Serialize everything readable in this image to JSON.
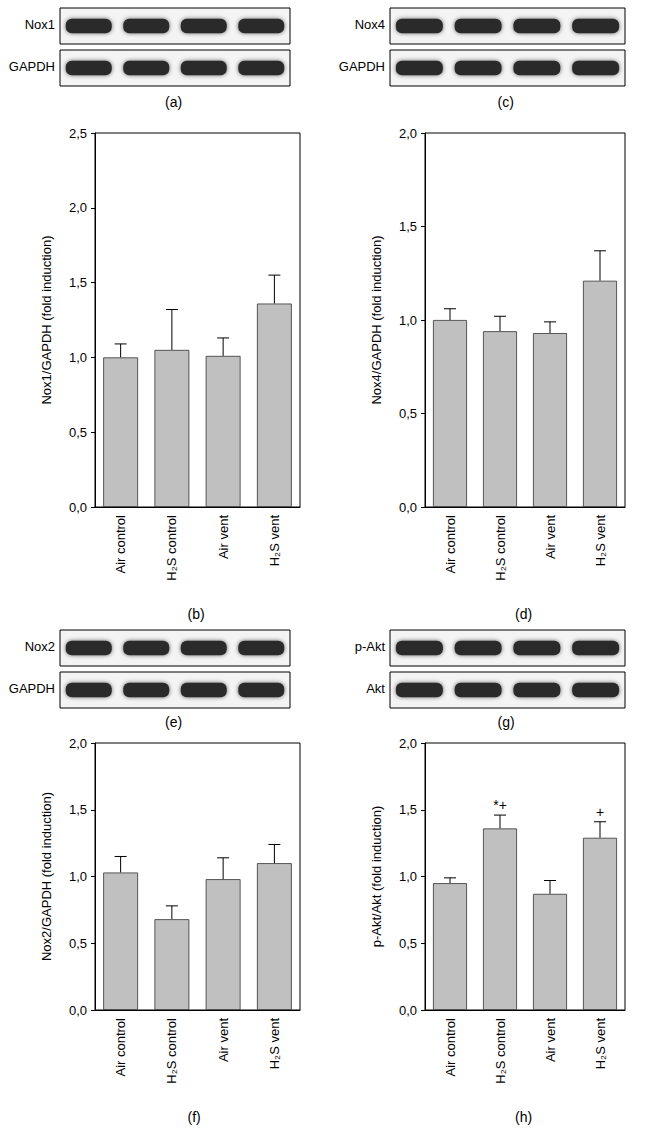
{
  "chart_data": [
    {
      "type": "bar",
      "panel": "(b)",
      "blot": {
        "panel": "(a)",
        "rows": [
          "Nox1",
          "GAPDH"
        ]
      },
      "y_label": "Nox1/GAPDH (fold induction)",
      "categories": [
        "Air control",
        "H₂S control",
        "Air vent",
        "H₂S vent"
      ],
      "values": [
        1.0,
        1.05,
        1.01,
        1.36
      ],
      "errors": [
        0.09,
        0.27,
        0.12,
        0.19
      ],
      "color": "#c0c0c0",
      "grid": false,
      "ylim": [
        0,
        2.5
      ],
      "yticks": [
        {
          "value": 0,
          "label": "0,0"
        },
        {
          "value": 0.5,
          "label": "0,5"
        },
        {
          "value": 1.0,
          "label": "1,0"
        },
        {
          "value": 1.5,
          "label": "1,5"
        },
        {
          "value": 2.0,
          "label": "2,0"
        },
        {
          "value": 2.5,
          "label": "2,5"
        }
      ]
    },
    {
      "type": "bar",
      "panel": "(d)",
      "blot": {
        "panel": "(c)",
        "rows": [
          "Nox4",
          "GAPDH"
        ]
      },
      "y_label": "Nox4/GAPDH (fold induction)",
      "categories": [
        "Air control",
        "H₂S control",
        "Air vent",
        "H₂S vent"
      ],
      "values": [
        1.0,
        0.94,
        0.93,
        1.21
      ],
      "errors": [
        0.06,
        0.08,
        0.06,
        0.16
      ],
      "color": "#c0c0c0",
      "grid": false,
      "ylim": [
        0,
        2.0
      ],
      "yticks": [
        {
          "value": 0,
          "label": "0,0"
        },
        {
          "value": 0.5,
          "label": "0,5"
        },
        {
          "value": 1.0,
          "label": "1,0"
        },
        {
          "value": 1.5,
          "label": "1,5"
        },
        {
          "value": 2.0,
          "label": "2,0"
        }
      ]
    },
    {
      "type": "bar",
      "panel": "(f)",
      "blot": {
        "panel": "(e)",
        "rows": [
          "Nox2",
          "GAPDH"
        ]
      },
      "y_label": "Nox2/GAPDH (fold induction)",
      "categories": [
        "Air control",
        "H₂S control",
        "Air vent",
        "H₂S vent"
      ],
      "values": [
        1.03,
        0.68,
        0.98,
        1.1
      ],
      "errors": [
        0.12,
        0.1,
        0.16,
        0.14
      ],
      "color": "#c0c0c0",
      "grid": false,
      "ylim": [
        0,
        2.0
      ],
      "yticks": [
        {
          "value": 0,
          "label": "0,0"
        },
        {
          "value": 0.5,
          "label": "0,5"
        },
        {
          "value": 1.0,
          "label": "1,0"
        },
        {
          "value": 1.5,
          "label": "1,5"
        },
        {
          "value": 2.0,
          "label": "2,0"
        }
      ]
    },
    {
      "type": "bar",
      "panel": "(h)",
      "blot": {
        "panel": "(g)",
        "rows": [
          "p-Akt",
          "Akt"
        ]
      },
      "y_label": "p-Akt/Akt (fold induction)",
      "categories": [
        "Air control",
        "H₂S control",
        "Air vent",
        "H₂S vent"
      ],
      "values": [
        0.95,
        1.36,
        0.87,
        1.29
      ],
      "errors": [
        0.04,
        0.1,
        0.1,
        0.12
      ],
      "annotations": [
        {
          "category": "H₂S control",
          "text": "*+"
        },
        {
          "category": "H₂S vent",
          "text": "+"
        }
      ],
      "color": "#c0c0c0",
      "grid": false,
      "ylim": [
        0,
        2.0
      ],
      "yticks": [
        {
          "value": 0,
          "label": "0,0"
        },
        {
          "value": 0.5,
          "label": "0,5"
        },
        {
          "value": 1.0,
          "label": "1,0"
        },
        {
          "value": 1.5,
          "label": "1,5"
        },
        {
          "value": 2.0,
          "label": "2,0"
        }
      ]
    }
  ]
}
